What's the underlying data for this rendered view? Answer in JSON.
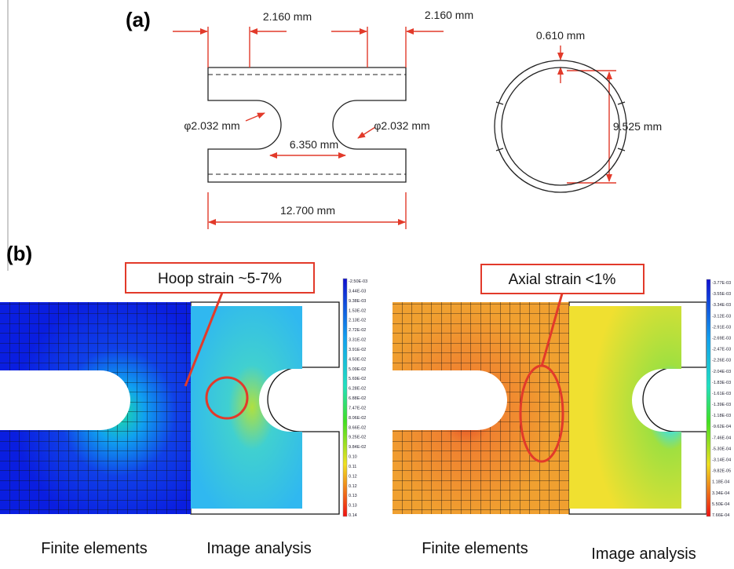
{
  "panel_a": {
    "label": "(a)",
    "dimensions": {
      "slot_left": "2.160 mm",
      "slot_right": "2.160 mm",
      "wall": "0.610 mm",
      "notch_left": "φ2.032 mm",
      "notch_right": "φ2.032 mm",
      "gauge": "6.350 mm",
      "diameter": "9.525 mm",
      "length": "12.700 mm"
    }
  },
  "panel_b": {
    "label": "(b)",
    "plots": [
      {
        "annotation": "Hoop strain ~5-7%",
        "colorbar": [
          "-2.50E-03",
          "3.44E-03",
          "9.38E-03",
          "1.53E-02",
          "2.13E-02",
          "2.72E-02",
          "3.31E-02",
          "3.91E-02",
          "4.50E-02",
          "5.09E-02",
          "5.69E-02",
          "6.28E-02",
          "6.88E-02",
          "7.47E-02",
          "8.06E-02",
          "8.66E-02",
          "9.25E-02",
          "9.84E-02",
          "0.10",
          "0.11",
          "0.12",
          "0.12",
          "0.13",
          "0.13",
          "0.14"
        ],
        "captions": [
          "Finite elements",
          "Image analysis"
        ]
      },
      {
        "annotation": "Axial strain <1%",
        "colorbar": [
          "-3.77E-03",
          "-3.55E-03",
          "-3.34E-03",
          "-3.12E-03",
          "-2.91E-03",
          "-2.69E-03",
          "-2.47E-03",
          "-2.26E-03",
          "-2.04E-03",
          "-1.83E-03",
          "-1.61E-03",
          "-1.39E-03",
          "-1.18E-03",
          "-9.62E-04",
          "-7.46E-04",
          "-5.30E-04",
          "-3.14E-04",
          "-9.82E-05",
          "1.18E-04",
          "3.34E-04",
          "5.50E-04",
          "7.66E-04"
        ],
        "captions": [
          "Finite elements",
          "Image analysis"
        ]
      }
    ]
  }
}
